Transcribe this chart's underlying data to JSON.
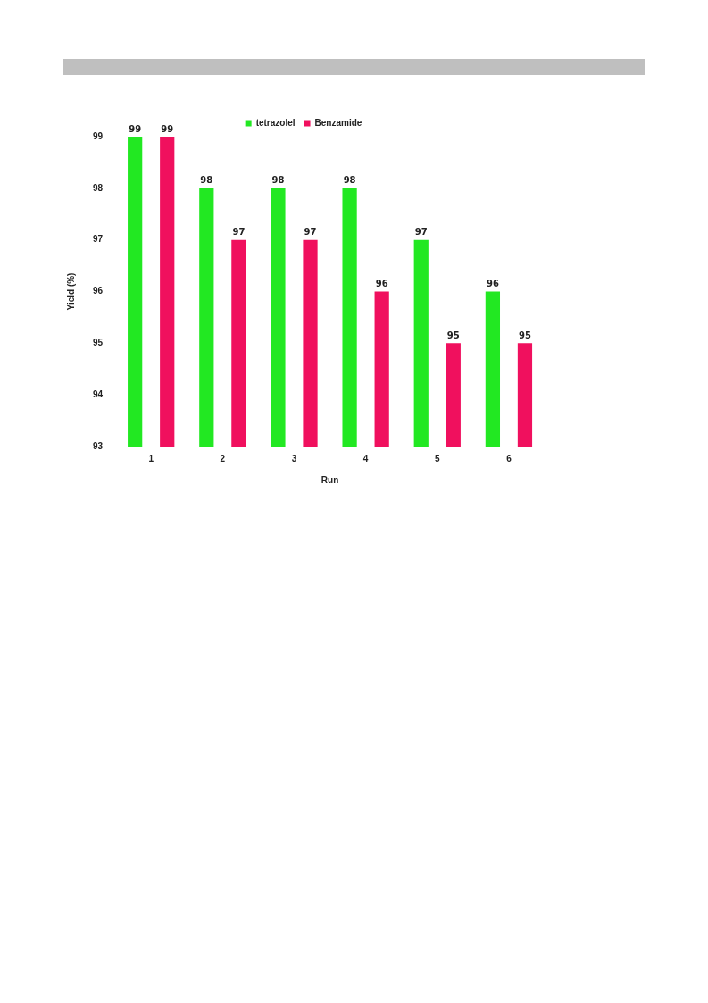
{
  "chart_data": {
    "type": "bar",
    "xlabel": "Run",
    "ylabel": "Yield (%)",
    "categories": [
      "1",
      "2",
      "3",
      "4",
      "5",
      "6"
    ],
    "series": [
      {
        "name": "tetrazolel",
        "color": "#22e822",
        "values": [
          99,
          98,
          98,
          98,
          97,
          96
        ]
      },
      {
        "name": "Benzamide",
        "color": "#f0105e",
        "values": [
          99,
          97,
          97,
          96,
          95,
          95
        ]
      }
    ],
    "ylim": [
      93,
      99
    ],
    "yticks": [
      93,
      94,
      95,
      96,
      97,
      98,
      99
    ],
    "grid": false,
    "legend": "top",
    "data_labels": true
  }
}
